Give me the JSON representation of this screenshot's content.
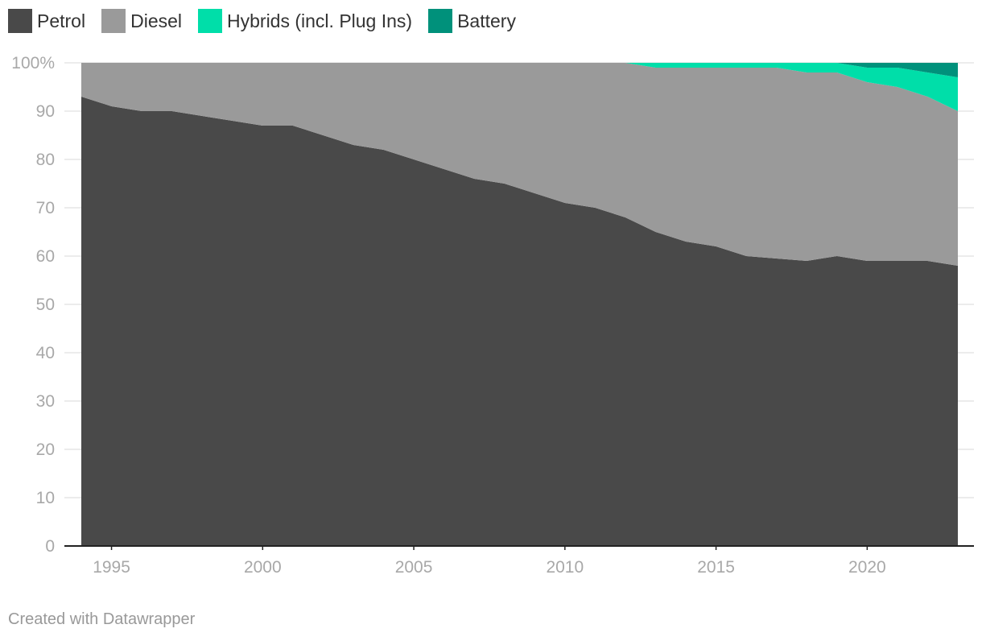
{
  "legend": [
    {
      "label": "Petrol",
      "color": "#494949"
    },
    {
      "label": "Diesel",
      "color": "#9a9a9a"
    },
    {
      "label": "Hybrids (incl. Plug Ins)",
      "color": "#00dea9"
    },
    {
      "label": "Battery",
      "color": "#00917b"
    }
  ],
  "footer": "Created with Datawrapper",
  "chart_data": {
    "type": "area",
    "stacked": true,
    "x": [
      1994,
      1995,
      1996,
      1997,
      1998,
      1999,
      2000,
      2001,
      2002,
      2003,
      2004,
      2005,
      2006,
      2007,
      2008,
      2009,
      2010,
      2011,
      2012,
      2013,
      2014,
      2015,
      2016,
      2017,
      2018,
      2019,
      2020,
      2021,
      2022,
      2023
    ],
    "series": [
      {
        "name": "Petrol",
        "color": "#494949",
        "values": [
          93,
          91,
          90,
          90,
          89,
          88,
          87,
          87,
          85,
          83,
          82,
          80,
          78,
          76,
          75,
          73,
          71,
          70,
          68,
          65,
          63,
          62,
          60,
          59.5,
          59,
          60,
          59,
          59,
          59,
          58
        ]
      },
      {
        "name": "Diesel",
        "color": "#9a9a9a",
        "values": [
          7,
          9,
          10,
          10,
          11,
          12,
          13,
          13,
          15,
          17,
          18,
          20,
          22,
          24,
          25,
          27,
          29,
          30,
          32,
          34,
          36,
          37,
          39,
          39.5,
          39,
          38,
          37,
          36,
          34,
          32
        ]
      },
      {
        "name": "Hybrids (incl. Plug Ins)",
        "color": "#00dea9",
        "values": [
          0,
          0,
          0,
          0,
          0,
          0,
          0,
          0,
          0,
          0,
          0,
          0,
          0,
          0,
          0,
          0,
          0,
          0,
          0,
          1,
          1,
          1,
          1,
          1,
          2,
          2,
          3,
          4,
          5,
          7
        ]
      },
      {
        "name": "Battery",
        "color": "#00917b",
        "values": [
          0,
          0,
          0,
          0,
          0,
          0,
          0,
          0,
          0,
          0,
          0,
          0,
          0,
          0,
          0,
          0,
          0,
          0,
          0,
          0,
          0,
          0,
          0,
          0,
          0,
          0,
          1,
          1,
          2,
          3
        ]
      }
    ],
    "ylim": [
      0,
      100
    ],
    "xlim": [
      1994,
      2023
    ],
    "y_ticks": [
      0,
      10,
      20,
      30,
      40,
      50,
      60,
      70,
      80,
      90,
      100
    ],
    "y_tick_labels": [
      "0",
      "10",
      "20",
      "30",
      "40",
      "50",
      "60",
      "70",
      "80",
      "90",
      "100%"
    ],
    "x_ticks": [
      1995,
      2000,
      2005,
      2010,
      2015,
      2020
    ],
    "x_tick_labels": [
      "1995",
      "2000",
      "2005",
      "2010",
      "2015",
      "2020"
    ],
    "grid": true,
    "legend_position": "top-left"
  }
}
